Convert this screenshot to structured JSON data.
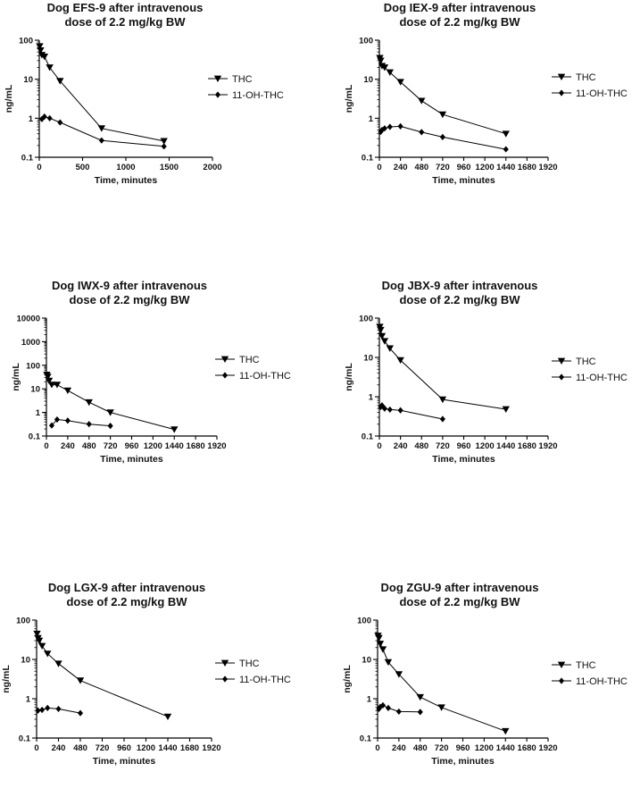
{
  "chart_data": [
    {
      "type": "scatter",
      "title_lines": [
        "Dog EFS-9 after intravenous",
        "dose of 2.2 mg/kg BW"
      ],
      "xlabel": "Time, minutes",
      "ylabel": "ng/mL",
      "yscale": "log",
      "xlim": [
        0,
        2000
      ],
      "ylim": [
        0.1,
        100
      ],
      "x_ticks": [
        "0",
        "500",
        "1000",
        "1500",
        "2000"
      ],
      "x_tick_values": [
        0,
        500,
        1000,
        1500,
        2000
      ],
      "y_ticks": [
        "0.1",
        "1",
        "10",
        "100"
      ],
      "y_tick_values": [
        0.1,
        1,
        10,
        100
      ],
      "legend_position": "right",
      "series": [
        {
          "name": "THC",
          "marker": "triangle-down",
          "x": [
            5,
            15,
            30,
            60,
            120,
            240,
            720,
            1440
          ],
          "y": [
            70,
            55,
            42,
            38,
            20,
            9,
            0.55,
            0.26
          ]
        },
        {
          "name": "11-OH-THC",
          "marker": "diamond",
          "x": [
            30,
            60,
            120,
            240,
            720,
            1440
          ],
          "y": [
            0.95,
            1.1,
            1.0,
            0.78,
            0.27,
            0.19
          ]
        }
      ]
    },
    {
      "type": "scatter",
      "title_lines": [
        "Dog IEX-9 after intravenous",
        "dose of 2.2 mg/kg BW"
      ],
      "xlabel": "Time, minutes",
      "ylabel": "ng/mL",
      "yscale": "log",
      "xlim": [
        0,
        1920
      ],
      "ylim": [
        0.1,
        100
      ],
      "x_ticks": [
        "0",
        "240",
        "480",
        "720",
        "960",
        "1200",
        "1440",
        "1680",
        "1920"
      ],
      "x_tick_values": [
        0,
        240,
        480,
        720,
        960,
        1200,
        1440,
        1680,
        1920
      ],
      "y_ticks": [
        "0.1",
        "1",
        "10",
        "100"
      ],
      "y_tick_values": [
        0.1,
        1,
        10,
        100
      ],
      "legend_position": "right",
      "series": [
        {
          "name": "THC",
          "marker": "triangle-down",
          "x": [
            5,
            15,
            30,
            60,
            120,
            240,
            480,
            720,
            1440
          ],
          "y": [
            35,
            30,
            22,
            20,
            15,
            8.5,
            2.8,
            1.25,
            0.4
          ]
        },
        {
          "name": "11-OH-THC",
          "marker": "diamond",
          "x": [
            15,
            30,
            60,
            120,
            240,
            480,
            720,
            1440
          ],
          "y": [
            0.45,
            0.5,
            0.55,
            0.6,
            0.62,
            0.44,
            0.33,
            0.16
          ]
        }
      ]
    },
    {
      "type": "scatter",
      "title_lines": [
        "Dog IWX-9 after intravenous",
        "dose of 2.2 mg/kg BW"
      ],
      "xlabel": "Time, minutes",
      "ylabel": "ng/mL",
      "yscale": "log",
      "xlim": [
        0,
        1920
      ],
      "ylim": [
        0.1,
        10000
      ],
      "x_ticks": [
        "0",
        "240",
        "480",
        "720",
        "960",
        "1200",
        "1440",
        "1680",
        "1920"
      ],
      "x_tick_values": [
        0,
        240,
        480,
        720,
        960,
        1200,
        1440,
        1680,
        1920
      ],
      "y_ticks": [
        "0.1",
        "1",
        "10",
        "100",
        "1000",
        "10000"
      ],
      "y_tick_values": [
        0.1,
        1,
        10,
        100,
        1000,
        10000
      ],
      "legend_position": "right",
      "series": [
        {
          "name": "THC",
          "marker": "triangle-down",
          "x": [
            5,
            15,
            30,
            60,
            120,
            240,
            480,
            720,
            1440
          ],
          "y": [
            40,
            33,
            22,
            15,
            15,
            8.5,
            2.7,
            1.0,
            0.19
          ]
        },
        {
          "name": "11-OH-THC",
          "marker": "diamond",
          "x": [
            60,
            120,
            240,
            480,
            720
          ],
          "y": [
            0.28,
            0.5,
            0.45,
            0.32,
            0.27
          ]
        }
      ]
    },
    {
      "type": "scatter",
      "title_lines": [
        "Dog JBX-9 after intravenous",
        "dose of 2.2 mg/kg BW"
      ],
      "xlabel": "Time, minutes",
      "ylabel": "ng/mL",
      "yscale": "log",
      "xlim": [
        0,
        1920
      ],
      "ylim": [
        0.1,
        100
      ],
      "x_ticks": [
        "0",
        "240",
        "480",
        "720",
        "960",
        "1200",
        "1440",
        "1680",
        "1920"
      ],
      "x_tick_values": [
        0,
        240,
        480,
        720,
        960,
        1200,
        1440,
        1680,
        1920
      ],
      "y_ticks": [
        "0.1",
        "1",
        "10",
        "100"
      ],
      "y_tick_values": [
        0.1,
        1,
        10,
        100
      ],
      "legend_position": "right",
      "series": [
        {
          "name": "THC",
          "marker": "triangle-down",
          "x": [
            5,
            15,
            30,
            60,
            120,
            240,
            720,
            1440
          ],
          "y": [
            60,
            50,
            35,
            26,
            17,
            8.5,
            0.85,
            0.48
          ]
        },
        {
          "name": "11-OH-THC",
          "marker": "diamond",
          "x": [
            15,
            30,
            60,
            120,
            240,
            720
          ],
          "y": [
            0.55,
            0.6,
            0.5,
            0.47,
            0.45,
            0.27
          ]
        }
      ]
    },
    {
      "type": "scatter",
      "title_lines": [
        "Dog LGX-9 after intravenous",
        "dose of 2.2 mg/kg BW"
      ],
      "xlabel": "Time, minutes",
      "ylabel": "ng/mL",
      "yscale": "log",
      "xlim": [
        0,
        1920
      ],
      "ylim": [
        0.1,
        100
      ],
      "x_ticks": [
        "0",
        "240",
        "480",
        "720",
        "960",
        "1200",
        "1440",
        "1680",
        "1920"
      ],
      "x_tick_values": [
        0,
        240,
        480,
        720,
        960,
        1200,
        1440,
        1680,
        1920
      ],
      "y_ticks": [
        "0.1",
        "1",
        "10",
        "100"
      ],
      "y_tick_values": [
        0.1,
        1,
        10,
        100
      ],
      "legend_position": "right",
      "series": [
        {
          "name": "THC",
          "marker": "triangle-down",
          "x": [
            5,
            15,
            30,
            60,
            120,
            240,
            480,
            1440
          ],
          "y": [
            45,
            35,
            30,
            22,
            14,
            7.8,
            2.9,
            0.35
          ]
        },
        {
          "name": "11-OH-THC",
          "marker": "diamond",
          "x": [
            15,
            60,
            120,
            240,
            480
          ],
          "y": [
            0.5,
            0.52,
            0.58,
            0.55,
            0.43
          ]
        }
      ]
    },
    {
      "type": "scatter",
      "title_lines": [
        "Dog ZGU-9 after intravenous",
        "dose of 2.2 mg/kg BW"
      ],
      "xlabel": "Time, minutes",
      "ylabel": "ng/mL",
      "yscale": "log",
      "xlim": [
        0,
        1920
      ],
      "ylim": [
        0.1,
        100
      ],
      "x_ticks": [
        "0",
        "240",
        "480",
        "720",
        "960",
        "1200",
        "1440",
        "1680",
        "1920"
      ],
      "x_tick_values": [
        0,
        240,
        480,
        720,
        960,
        1200,
        1440,
        1680,
        1920
      ],
      "y_ticks": [
        "0.1",
        "1",
        "10",
        "100"
      ],
      "y_tick_values": [
        0.1,
        1,
        10,
        100
      ],
      "legend_position": "right",
      "series": [
        {
          "name": "THC",
          "marker": "triangle-down",
          "x": [
            5,
            15,
            30,
            60,
            120,
            240,
            480,
            720,
            1440
          ],
          "y": [
            40,
            35,
            25,
            18,
            8.5,
            4.2,
            1.1,
            0.6,
            0.15
          ]
        },
        {
          "name": "11-OH-THC",
          "marker": "diamond",
          "x": [
            15,
            30,
            60,
            120,
            240,
            480
          ],
          "y": [
            0.55,
            0.62,
            0.68,
            0.58,
            0.47,
            0.46
          ]
        }
      ]
    }
  ]
}
